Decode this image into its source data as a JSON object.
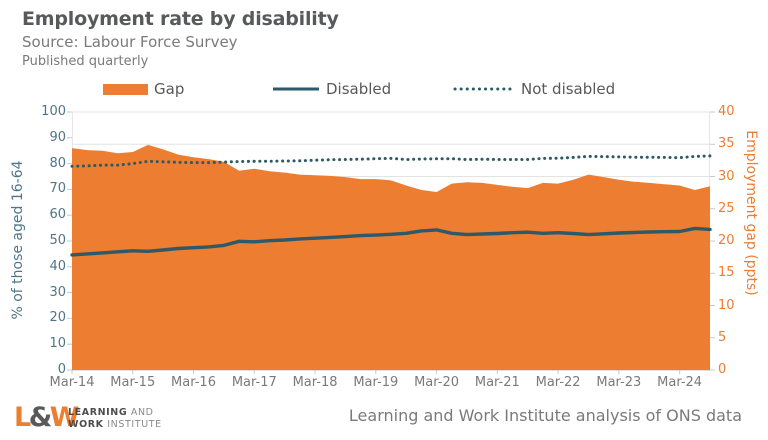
{
  "header": {
    "title": "Employment rate by disability",
    "source": "Source: Labour Force Survey",
    "published": "Published quarterly"
  },
  "legend": [
    {
      "label": "Gap",
      "marker": "orange-area-swatch",
      "color": "#ED7D31"
    },
    {
      "label": "Disabled",
      "marker": "solid-line",
      "color": "#2E5968"
    },
    {
      "label": "Not disabled",
      "marker": "dotted-line",
      "color": "#2E5968"
    }
  ],
  "footer": {
    "logo": {
      "l": "L",
      "amp": "&",
      "w": "W",
      "line1_bold": "LEARNING",
      "line1_rest": " AND",
      "line2_bold": "WORK",
      "line2_rest": " INSTITUTE"
    },
    "attribution": "Learning and Work Institute analysis of ONS data"
  },
  "colors": {
    "accent_orange": "#ED7D31",
    "line_teal": "#2E5968",
    "left_axis_text": "#4E7588",
    "gridline": "#E3E3E3",
    "title_text": "#58595B",
    "muted_text": "#7A7A7A"
  },
  "chart_data": {
    "type": "area",
    "subtype": "combo: area on right axis + solid line and dotted line on left axis",
    "title": "Employment rate by disability",
    "x": [
      "Mar-14",
      "Jun-14",
      "Sep-14",
      "Dec-14",
      "Mar-15",
      "Jun-15",
      "Sep-15",
      "Dec-15",
      "Mar-16",
      "Jun-16",
      "Sep-16",
      "Dec-16",
      "Mar-17",
      "Jun-17",
      "Sep-17",
      "Dec-17",
      "Mar-18",
      "Jun-18",
      "Sep-18",
      "Dec-18",
      "Mar-19",
      "Jun-19",
      "Sep-19",
      "Dec-19",
      "Mar-20",
      "Jun-20",
      "Sep-20",
      "Dec-20",
      "Mar-21",
      "Jun-21",
      "Sep-21",
      "Dec-21",
      "Mar-22",
      "Jun-22",
      "Sep-22",
      "Dec-22",
      "Mar-23",
      "Jun-23",
      "Sep-23",
      "Dec-23",
      "Mar-24",
      "Jun-24",
      "Sep-24"
    ],
    "x_tick_labels": [
      "Mar-14",
      "Mar-15",
      "Mar-16",
      "Mar-17",
      "Mar-18",
      "Mar-19",
      "Mar-20",
      "Mar-21",
      "Mar-22",
      "Mar-23",
      "Mar-24"
    ],
    "left_axis": {
      "label": "% of those aged 16-64",
      "min": 0,
      "max": 100,
      "step": 10,
      "color": "#4E7588"
    },
    "right_axis": {
      "label": "Employment gap (ppts)",
      "min": 0,
      "max": 40,
      "step": 5,
      "color": "#ED7D31"
    },
    "grid": "horizontal gridlines at right-axis ticks, legend at top",
    "series": [
      {
        "name": "Gap",
        "axis": "right",
        "type": "area",
        "color": "#ED7D31",
        "values": [
          34.4,
          34.1,
          34.0,
          33.6,
          33.8,
          34.9,
          34.2,
          33.4,
          33.0,
          32.7,
          32.3,
          30.9,
          31.2,
          30.8,
          30.6,
          30.3,
          30.2,
          30.1,
          29.9,
          29.6,
          29.6,
          29.4,
          28.6,
          27.9,
          27.6,
          28.9,
          29.1,
          29.0,
          28.7,
          28.4,
          28.2,
          29.0,
          28.9,
          29.5,
          30.3,
          29.9,
          29.5,
          29.2,
          29.0,
          28.8,
          28.6,
          27.9,
          28.5
        ]
      },
      {
        "name": "Disabled",
        "axis": "left",
        "type": "line",
        "color": "#2E5968",
        "values": [
          44.6,
          45.0,
          45.4,
          45.8,
          46.2,
          46.0,
          46.5,
          47.1,
          47.4,
          47.7,
          48.3,
          49.9,
          49.7,
          50.1,
          50.4,
          50.8,
          51.1,
          51.4,
          51.7,
          52.1,
          52.3,
          52.6,
          53.0,
          53.9,
          54.3,
          53.0,
          52.5,
          52.7,
          52.9,
          53.2,
          53.4,
          53.0,
          53.2,
          52.9,
          52.5,
          52.8,
          53.1,
          53.3,
          53.5,
          53.6,
          53.7,
          54.9,
          54.5
        ]
      },
      {
        "name": "Not disabled",
        "axis": "left",
        "type": "dotted-line",
        "color": "#2E5968",
        "values": [
          79.0,
          79.1,
          79.4,
          79.4,
          80.0,
          80.9,
          80.7,
          80.5,
          80.4,
          80.4,
          80.6,
          80.8,
          80.9,
          80.9,
          81.0,
          81.1,
          81.3,
          81.5,
          81.6,
          81.7,
          81.9,
          82.0,
          81.6,
          81.8,
          81.9,
          81.9,
          81.6,
          81.7,
          81.6,
          81.6,
          81.6,
          82.0,
          82.1,
          82.4,
          82.8,
          82.7,
          82.6,
          82.5,
          82.5,
          82.4,
          82.3,
          82.8,
          83.0
        ]
      }
    ]
  }
}
